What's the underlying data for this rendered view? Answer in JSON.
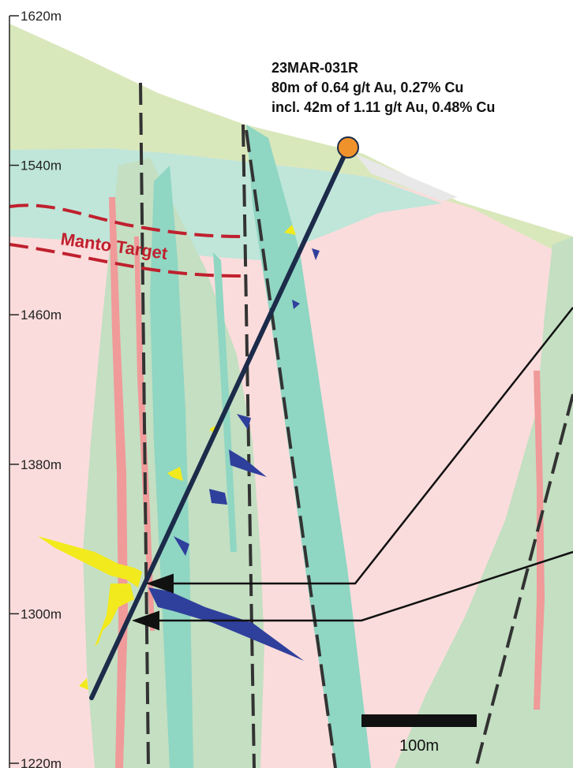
{
  "elevation_axis": {
    "unit": "m",
    "ticks": [
      {
        "value": 1620,
        "label": "1620m"
      },
      {
        "value": 1540,
        "label": "1540m"
      },
      {
        "value": 1460,
        "label": "1460m"
      },
      {
        "value": 1380,
        "label": "1380m"
      },
      {
        "value": 1300,
        "label": "1300m"
      },
      {
        "value": 1220,
        "label": "1220m"
      }
    ]
  },
  "drillhole": {
    "name": "23MAR-031R",
    "intercept": "80m of 0.64 g/t Au, 0.27% Cu",
    "including": "incl. 42m of 1.11 g/t Au, 0.48% Cu",
    "collar_color": "#f0922b",
    "trace_color": "#1c2b4a"
  },
  "target": {
    "label": "Manto Target",
    "color": "#c0202e"
  },
  "scale_bar": {
    "label": "100m"
  },
  "colors": {
    "overburden": "#d9e8bb",
    "cyan_unit": "#bfe6d9",
    "pink_host": "#fbdcdc",
    "green_unit": "#c4dfc2",
    "teal_dyke": "#8fd6c3",
    "red_vein": "#f09a9a",
    "au_histogram": "#f2ea1c",
    "cu_histogram": "#2f3f9c"
  }
}
